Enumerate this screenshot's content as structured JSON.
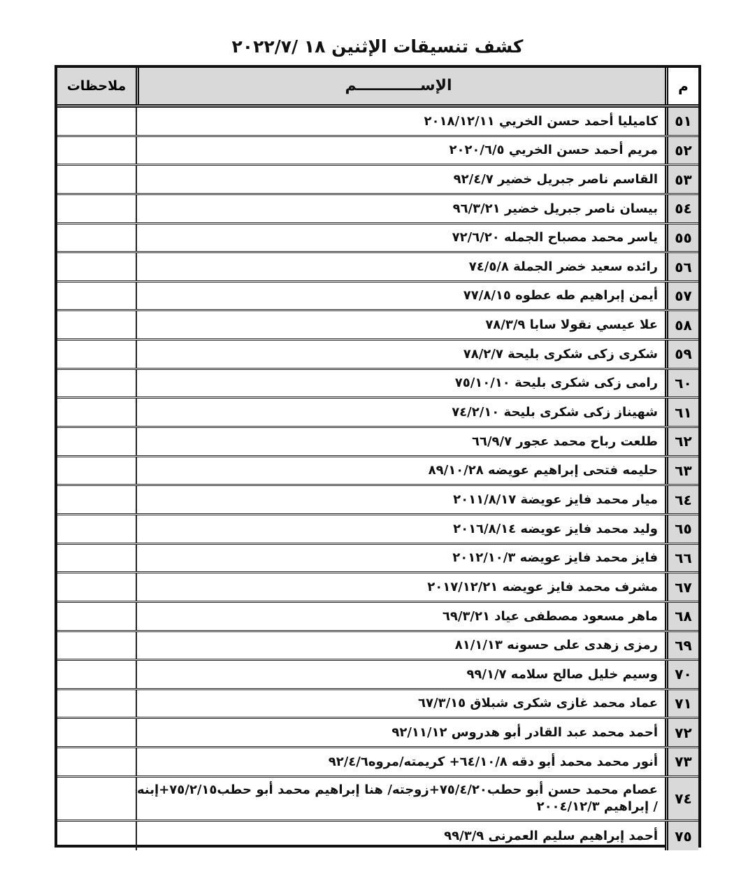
{
  "title": "كشف تنسيقات الإثنين ١٨ /٢٠٢٢/٧",
  "headers": {
    "number": "م",
    "name": "الإســــــــــــم",
    "notes": "ملاحظات"
  },
  "rows": [
    {
      "n": "٥١",
      "name": "كاميليا أحمد حسن الخريي ٢٠١٨/١٢/١١"
    },
    {
      "n": "٥٢",
      "name": "مريم أحمد حسن الخريي ٢٠٢٠/٦/٥"
    },
    {
      "n": "٥٣",
      "name": "القاسم ناصر جبريل خضير ٩٢/٤/٧"
    },
    {
      "n": "٥٤",
      "name": "بيسان ناصر جبريل خضير ٩٦/٣/٢١"
    },
    {
      "n": "٥٥",
      "name": "ياسر محمد مصباح الجمله ٧٢/٦/٢٠"
    },
    {
      "n": "٥٦",
      "name": "رائده سعيد خضر الجملة ٧٤/٥/٨"
    },
    {
      "n": "٥٧",
      "name": "أيمن إبراهيم طه عطوه ٧٧/٨/١٥"
    },
    {
      "n": "٥٨",
      "name": "علا عيسي نقولا سابا ٧٨/٣/٩"
    },
    {
      "n": "٥٩",
      "name": "شكرى زكى شكرى بليحة ٧٨/٢/٧"
    },
    {
      "n": "٦٠",
      "name": "رامى زكى شكرى بليحة ٧٥/١٠/١٠"
    },
    {
      "n": "٦١",
      "name": "شهيناز زكى شكرى بليحة ٧٤/٢/١٠"
    },
    {
      "n": "٦٢",
      "name": "طلعت رباح محمد عجور ٦٦/٩/٧"
    },
    {
      "n": "٦٣",
      "name": "حليمه فتحى إبراهيم عويضه ٨٩/١٠/٢٨"
    },
    {
      "n": "٦٤",
      "name": "ميار محمد فايز عويضة ٢٠١١/٨/١٧"
    },
    {
      "n": "٦٥",
      "name": "وليد محمد فايز عويضه ٢٠١٦/٨/١٤"
    },
    {
      "n": "٦٦",
      "name": "فايز محمد فايز عويضه ٢٠١٢/١٠/٣"
    },
    {
      "n": "٦٧",
      "name": "مشرف محمد فايز عويضه ٢٠١٧/١٢/٢١"
    },
    {
      "n": "٦٨",
      "name": "ماهر مسعود مصطفى عياد ٦٩/٣/٢١"
    },
    {
      "n": "٦٩",
      "name": "رمزى زهدى على حسونه ٨١/١/١٣"
    },
    {
      "n": "٧٠",
      "name": "وسيم خليل صالح سلامه ٩٩/١/٧"
    },
    {
      "n": "٧١",
      "name": "عماد محمد غازى شكرى شبلاق ٦٧/٣/١٥"
    },
    {
      "n": "٧٢",
      "name": "أحمد محمد عبد القادر أبو هدروس ٩٢/١١/١٢"
    },
    {
      "n": "٧٣",
      "name": "أنور محمد محمد أبو دقه ٦٤/١٠/٨+ كريمته/مروه٩٢/٤/٦"
    },
    {
      "n": "٧٤",
      "name": "عصام محمد حسن أبو حطب٧٥/٤/٢٠+زوجته/ هنا إبراهيم محمد أبو حطب٧٥/٢/١٥+إبنه / إبراهيم ٢٠٠٤/١٢/٣"
    },
    {
      "n": "٧٥",
      "name": "أحمد إبراهيم سليم العمرنى ٩٩/٣/٩"
    }
  ],
  "notes": ""
}
